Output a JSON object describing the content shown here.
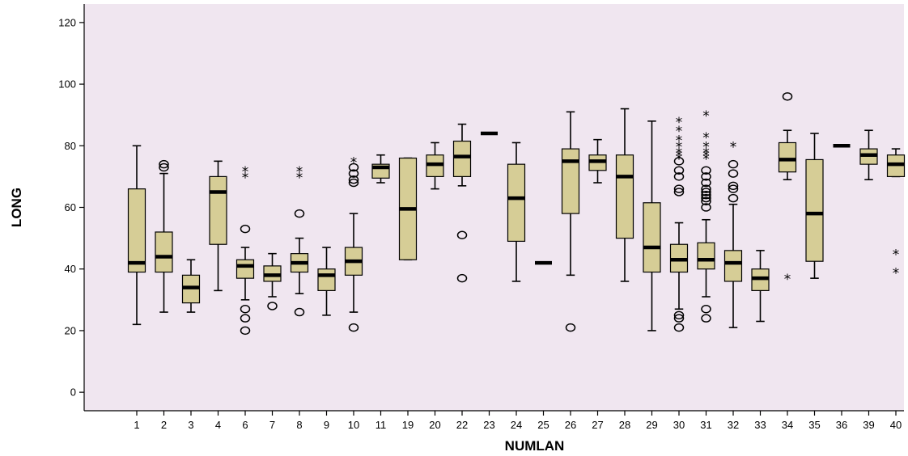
{
  "chart_data": {
    "type": "boxplot",
    "xlabel": "NUMLAN",
    "ylabel": "LONG",
    "ylim": [
      -6,
      126
    ],
    "yticks": [
      0,
      20,
      40,
      60,
      80,
      100,
      120
    ],
    "grid": false,
    "legend": "none",
    "colors": {
      "plot_background": "#f0e6f0",
      "box_fill": "#d6cd96",
      "box_stroke": "#000000"
    },
    "categories": [
      "1",
      "2",
      "3",
      "4",
      "6",
      "7",
      "8",
      "9",
      "10",
      "11",
      "19",
      "20",
      "22",
      "23",
      "24",
      "25",
      "26",
      "27",
      "28",
      "29",
      "30",
      "31",
      "32",
      "33",
      "34",
      "35",
      "36",
      "39",
      "40"
    ],
    "boxes": [
      {
        "category": "1",
        "whisker_low": 22,
        "q1": 39,
        "median": 42,
        "q3": 66,
        "whisker_high": 80,
        "outliers": [],
        "extremes": []
      },
      {
        "category": "2",
        "whisker_low": 26,
        "q1": 39,
        "median": 44,
        "q3": 52,
        "whisker_high": 71,
        "outliers": [
          73,
          74
        ],
        "extremes": []
      },
      {
        "category": "3",
        "whisker_low": 26,
        "q1": 29,
        "median": 34,
        "q3": 38,
        "whisker_high": 43,
        "outliers": [],
        "extremes": []
      },
      {
        "category": "4",
        "whisker_low": 33,
        "q1": 48,
        "median": 65,
        "q3": 70,
        "whisker_high": 75,
        "outliers": [],
        "extremes": []
      },
      {
        "category": "6",
        "whisker_low": 30,
        "q1": 37,
        "median": 41,
        "q3": 43,
        "whisker_high": 47,
        "outliers": [
          20,
          24,
          27,
          53
        ],
        "extremes": [
          70,
          72
        ]
      },
      {
        "category": "7",
        "whisker_low": 31,
        "q1": 36,
        "median": 38,
        "q3": 41,
        "whisker_high": 45,
        "outliers": [
          28
        ],
        "extremes": []
      },
      {
        "category": "8",
        "whisker_low": 32,
        "q1": 39,
        "median": 42,
        "q3": 45,
        "whisker_high": 50,
        "outliers": [
          26,
          58
        ],
        "extremes": [
          70,
          72
        ]
      },
      {
        "category": "9",
        "whisker_low": 25,
        "q1": 33,
        "median": 38,
        "q3": 40,
        "whisker_high": 47,
        "outliers": [],
        "extremes": []
      },
      {
        "category": "10",
        "whisker_low": 26,
        "q1": 38,
        "median": 42.5,
        "q3": 47,
        "whisker_high": 58,
        "outliers": [
          21,
          68,
          69,
          71,
          73
        ],
        "extremes": [
          75
        ]
      },
      {
        "category": "11",
        "whisker_low": 68,
        "q1": 69.5,
        "median": 73,
        "q3": 74,
        "whisker_high": 77,
        "outliers": [],
        "extremes": []
      },
      {
        "category": "19",
        "whisker_low": 43,
        "q1": 43,
        "median": 59.5,
        "q3": 76,
        "whisker_high": 76,
        "outliers": [],
        "extremes": []
      },
      {
        "category": "20",
        "whisker_low": 66,
        "q1": 70,
        "median": 74,
        "q3": 77,
        "whisker_high": 81,
        "outliers": [],
        "extremes": []
      },
      {
        "category": "22",
        "whisker_low": 67,
        "q1": 70,
        "median": 76.5,
        "q3": 81.5,
        "whisker_high": 87,
        "outliers": [
          37,
          51
        ],
        "extremes": []
      },
      {
        "category": "23",
        "whisker_low": 84,
        "q1": 84,
        "median": 84,
        "q3": 84,
        "whisker_high": 84,
        "outliers": [],
        "extremes": []
      },
      {
        "category": "24",
        "whisker_low": 36,
        "q1": 49,
        "median": 63,
        "q3": 74,
        "whisker_high": 81,
        "outliers": [],
        "extremes": []
      },
      {
        "category": "25",
        "whisker_low": 42,
        "q1": 42,
        "median": 42,
        "q3": 42,
        "whisker_high": 42,
        "outliers": [],
        "extremes": []
      },
      {
        "category": "26",
        "whisker_low": 38,
        "q1": 58,
        "median": 75,
        "q3": 79,
        "whisker_high": 91,
        "outliers": [
          21
        ],
        "extremes": []
      },
      {
        "category": "27",
        "whisker_low": 68,
        "q1": 72,
        "median": 75,
        "q3": 77,
        "whisker_high": 82,
        "outliers": [],
        "extremes": []
      },
      {
        "category": "28",
        "whisker_low": 36,
        "q1": 50,
        "median": 70,
        "q3": 77,
        "whisker_high": 92,
        "outliers": [],
        "extremes": []
      },
      {
        "category": "29",
        "whisker_low": 20,
        "q1": 39,
        "median": 47,
        "q3": 61.5,
        "whisker_high": 88,
        "outliers": [],
        "extremes": []
      },
      {
        "category": "30",
        "whisker_low": 27,
        "q1": 39,
        "median": 43,
        "q3": 48,
        "whisker_high": 55,
        "outliers": [
          21,
          24,
          25,
          65,
          66,
          70,
          72,
          75
        ],
        "extremes": [
          76,
          77,
          78,
          80,
          82,
          85,
          88
        ]
      },
      {
        "category": "31",
        "whisker_low": 31,
        "q1": 40,
        "median": 43,
        "q3": 48.5,
        "whisker_high": 56,
        "outliers": [
          24,
          27,
          60,
          62,
          63,
          64,
          65,
          66,
          68,
          70,
          72
        ],
        "extremes": [
          76,
          77,
          78,
          80,
          83,
          90
        ]
      },
      {
        "category": "32",
        "whisker_low": 21,
        "q1": 36,
        "median": 42,
        "q3": 46,
        "whisker_high": 61,
        "outliers": [
          63,
          66,
          67,
          71,
          74
        ],
        "extremes": [
          80
        ]
      },
      {
        "category": "33",
        "whisker_low": 23,
        "q1": 33,
        "median": 37,
        "q3": 40,
        "whisker_high": 46,
        "outliers": [],
        "extremes": []
      },
      {
        "category": "34",
        "whisker_low": 69,
        "q1": 71.5,
        "median": 75.5,
        "q3": 81,
        "whisker_high": 85,
        "outliers": [
          96
        ],
        "extremes": [
          37
        ]
      },
      {
        "category": "35",
        "whisker_low": 37,
        "q1": 42.5,
        "median": 58,
        "q3": 75.5,
        "whisker_high": 84,
        "outliers": [],
        "extremes": []
      },
      {
        "category": "36",
        "whisker_low": 80,
        "q1": 80,
        "median": 80,
        "q3": 80,
        "whisker_high": 80,
        "outliers": [],
        "extremes": []
      },
      {
        "category": "39",
        "whisker_low": 69,
        "q1": 74,
        "median": 77,
        "q3": 79,
        "whisker_high": 85,
        "outliers": [],
        "extremes": []
      },
      {
        "category": "40",
        "whisker_low": 70,
        "q1": 70,
        "median": 74,
        "q3": 77,
        "whisker_high": 79,
        "outliers": [],
        "extremes": [
          39,
          45
        ]
      }
    ]
  }
}
